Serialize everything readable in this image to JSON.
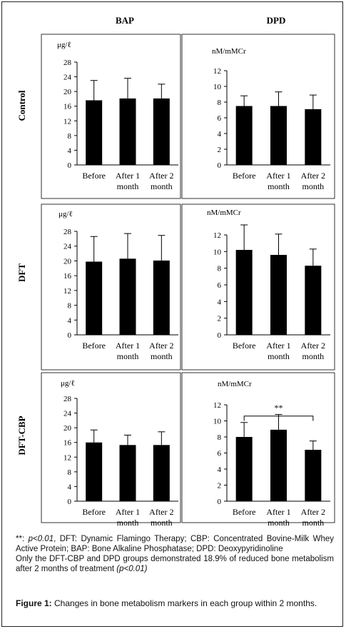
{
  "columns": [
    "BAP",
    "DPD"
  ],
  "rows": [
    "Control",
    "DFT",
    "DFT-CBP"
  ],
  "units": {
    "bap": "μg/ℓ",
    "dpd": "nM/mMCr"
  },
  "categories": [
    "Before",
    "After 1 month",
    "After 2 month"
  ],
  "chart_data": [
    {
      "type": "bar",
      "panel": "Control-BAP",
      "title": "BAP",
      "ylabel": "μg/ℓ",
      "categories": [
        "Before",
        "After 1 month",
        "After 2 month"
      ],
      "values": [
        17.6,
        18.1,
        18.1
      ],
      "error": [
        5.4,
        5.5,
        3.9
      ],
      "ylim": [
        0,
        28
      ],
      "yticks": [
        0,
        4,
        8,
        12,
        16,
        20,
        24,
        28
      ],
      "grid": false,
      "legend": "none"
    },
    {
      "type": "bar",
      "panel": "Control-DPD",
      "title": "DPD",
      "ylabel": "nM/mMCr",
      "categories": [
        "Before",
        "After 1 month",
        "After 2 month"
      ],
      "values": [
        7.5,
        7.5,
        7.1
      ],
      "error": [
        1.3,
        1.8,
        1.8
      ],
      "ylim": [
        0,
        12
      ],
      "yticks": [
        0,
        2,
        4,
        6,
        8,
        10,
        12
      ],
      "grid": false,
      "legend": "none"
    },
    {
      "type": "bar",
      "panel": "DFT-BAP",
      "title": "BAP",
      "ylabel": "μg/ℓ",
      "categories": [
        "Before",
        "After 1 month",
        "After 2 month"
      ],
      "values": [
        19.8,
        20.6,
        20.1
      ],
      "error": [
        6.8,
        6.8,
        6.8
      ],
      "ylim": [
        0,
        28
      ],
      "yticks": [
        0,
        4,
        8,
        12,
        16,
        20,
        24,
        28
      ],
      "grid": false,
      "legend": "none"
    },
    {
      "type": "bar",
      "panel": "DFT-DPD",
      "title": "DPD",
      "ylabel": "nM/mMCr",
      "categories": [
        "Before",
        "After 1 month",
        "After 2 month"
      ],
      "values": [
        10.2,
        9.6,
        8.3
      ],
      "error": [
        3.0,
        2.5,
        2.0
      ],
      "ylim": [
        0,
        12
      ],
      "yticks": [
        0,
        2,
        4,
        6,
        8,
        10,
        12
      ],
      "grid": false,
      "legend": "none"
    },
    {
      "type": "bar",
      "panel": "DFT-CBP-BAP",
      "title": "BAP",
      "ylabel": "μg/ℓ",
      "categories": [
        "Before",
        "After 1 month",
        "After 2 month"
      ],
      "values": [
        16.0,
        15.3,
        15.3
      ],
      "error": [
        3.4,
        2.7,
        3.6
      ],
      "ylim": [
        0,
        28
      ],
      "yticks": [
        0,
        4,
        8,
        12,
        16,
        20,
        24,
        28
      ],
      "grid": false,
      "legend": "none"
    },
    {
      "type": "bar",
      "panel": "DFT-CBP-DPD",
      "title": "DPD",
      "ylabel": "nM/mMCr",
      "categories": [
        "Before",
        "After 1 month",
        "After 2 month"
      ],
      "values": [
        8.0,
        8.9,
        6.4
      ],
      "error": [
        1.8,
        1.9,
        1.1
      ],
      "ylim": [
        0,
        12
      ],
      "yticks": [
        0,
        2,
        4,
        6,
        8,
        10,
        12
      ],
      "grid": false,
      "legend": "none",
      "annotation": {
        "text": "**",
        "from": "Before",
        "to": "After 2 month",
        "y": 10.6
      }
    }
  ],
  "footnote": {
    "stars": "**: ",
    "p_value": "p<0.01",
    "definitions": ", DFT: Dynamic Flamingo Therapy; CBP: Concentrated Bovine-Milk Whey Active Protein; BAP: Bone Alkaline Phosphatase; DPD: Deoxypyridinoline",
    "summary": "Only the DFT-CBP and DPD groups demonstrated 18.9% of reduced bone metabolism after 2 months of treatment ",
    "summary_p": "(p<0.01)"
  },
  "figure_caption": {
    "label": "Figure 1:",
    "text": " Changes in bone metabolism markers in each group within 2 months."
  }
}
